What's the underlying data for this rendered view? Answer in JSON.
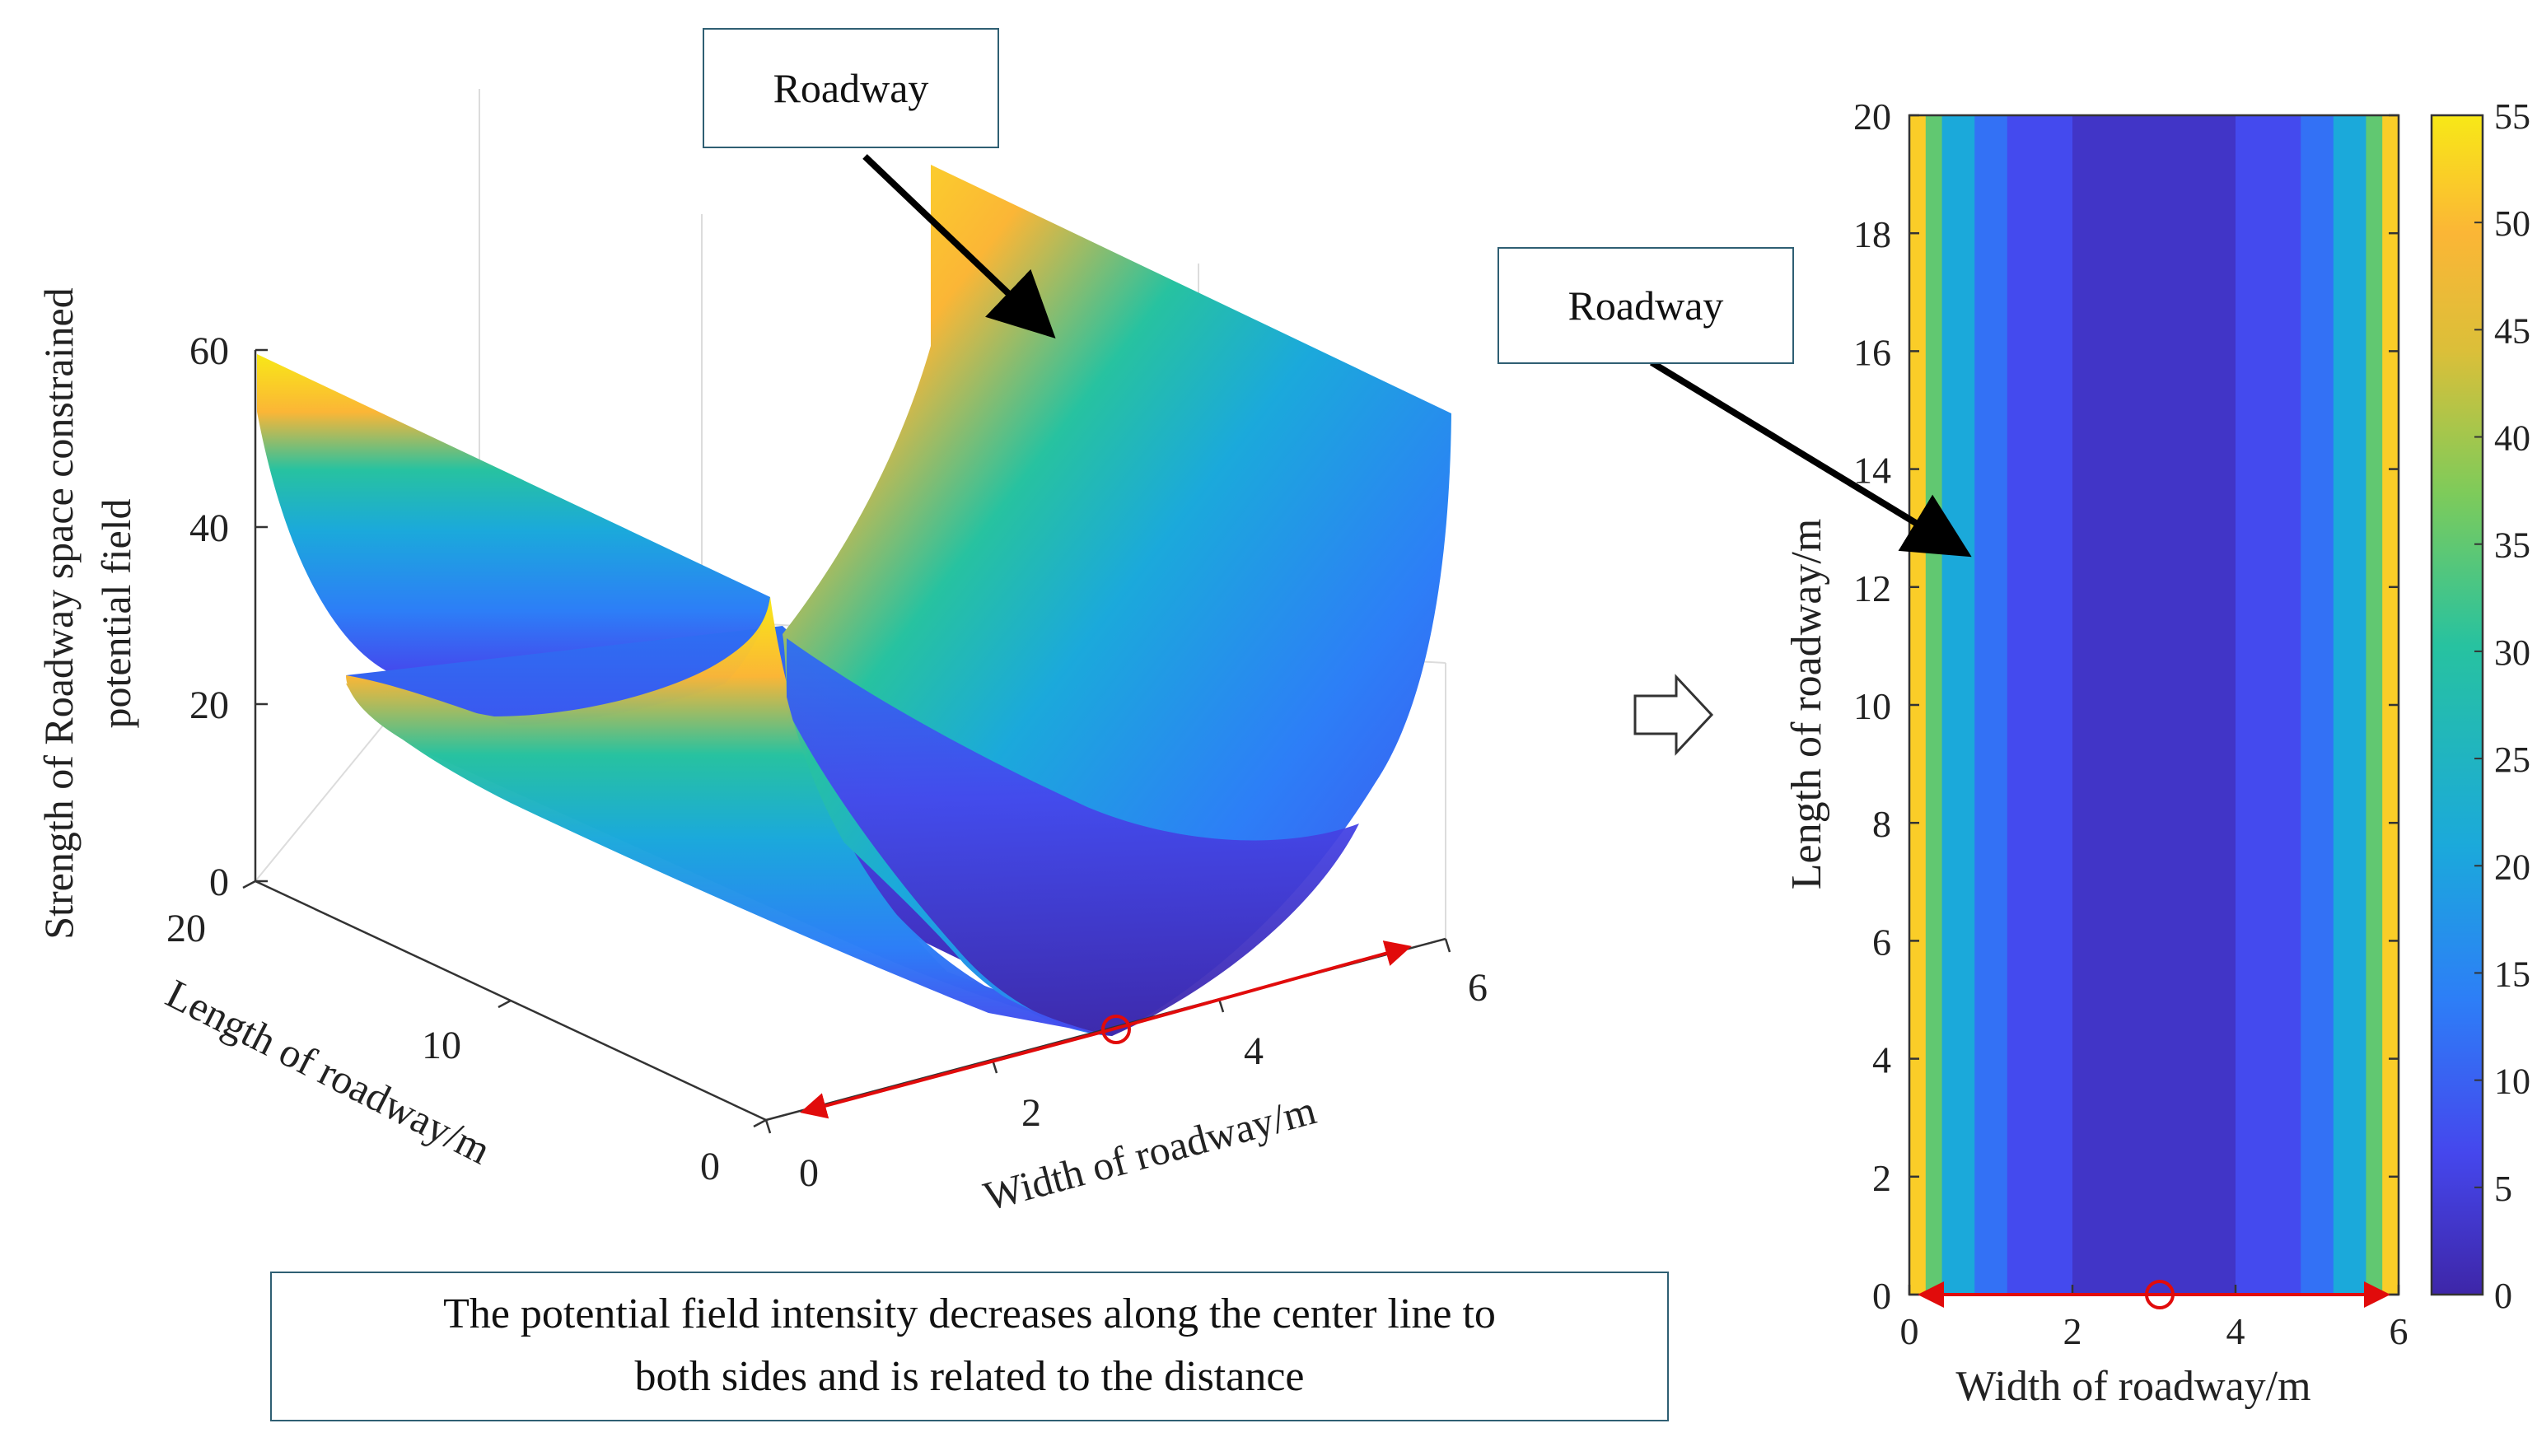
{
  "colors": {
    "viridis_like": [
      "#3e26a8",
      "#4547ed",
      "#2d7ef7",
      "#1ba9db",
      "#27c2a0",
      "#7ecb5a",
      "#dbbf39",
      "#fbb636",
      "#f8e817"
    ],
    "accent_red": "#e10b0b",
    "box_border": "#2f5f73"
  },
  "chart_data": [
    {
      "type": "surface3d",
      "zlabel": "Strength of Roadway space constrained potential field",
      "zlabel_line1": "Strength of Roadway space constrained",
      "zlabel_line2": "potential field",
      "xlabel": "Width of roadway/m",
      "ylabel": "Length of roadway/m",
      "x_ticks": [
        "0",
        "2",
        "4",
        "6"
      ],
      "y_ticks": [
        "0",
        "10",
        "20"
      ],
      "z_ticks": [
        "0",
        "20",
        "40",
        "60"
      ],
      "xlim": [
        0,
        6
      ],
      "ylim": [
        0,
        20
      ],
      "zlim": [
        0,
        60
      ],
      "center_x": 3,
      "edge_value": 55,
      "annotation": "Roadway"
    },
    {
      "type": "heatmap",
      "xlabel": "Width of roadway/m",
      "ylabel": "Length of roadway/m",
      "x_ticks": [
        "0",
        "2",
        "4",
        "6"
      ],
      "y_ticks": [
        "0",
        "2",
        "4",
        "6",
        "8",
        "10",
        "12",
        "14",
        "16",
        "18",
        "20"
      ],
      "xlim": [
        0,
        6
      ],
      "ylim": [
        0,
        20
      ],
      "colorbar_ticks": [
        "0",
        "5",
        "10",
        "15",
        "20",
        "25",
        "30",
        "35",
        "40",
        "45",
        "50",
        "55"
      ],
      "colorbar_range": [
        0,
        55
      ],
      "band_edges_x": [
        0,
        0.2,
        0.4,
        0.8,
        1.2,
        2.0,
        4.0,
        4.8,
        5.2,
        5.6,
        5.8,
        6.0
      ],
      "band_values": [
        52,
        35,
        21,
        12,
        7,
        3,
        7,
        12,
        21,
        35,
        52
      ],
      "annotation": "Roadway"
    }
  ],
  "note": {
    "line1": "The potential field intensity decreases along the center line to",
    "line2": "both sides and is related to the distance"
  }
}
